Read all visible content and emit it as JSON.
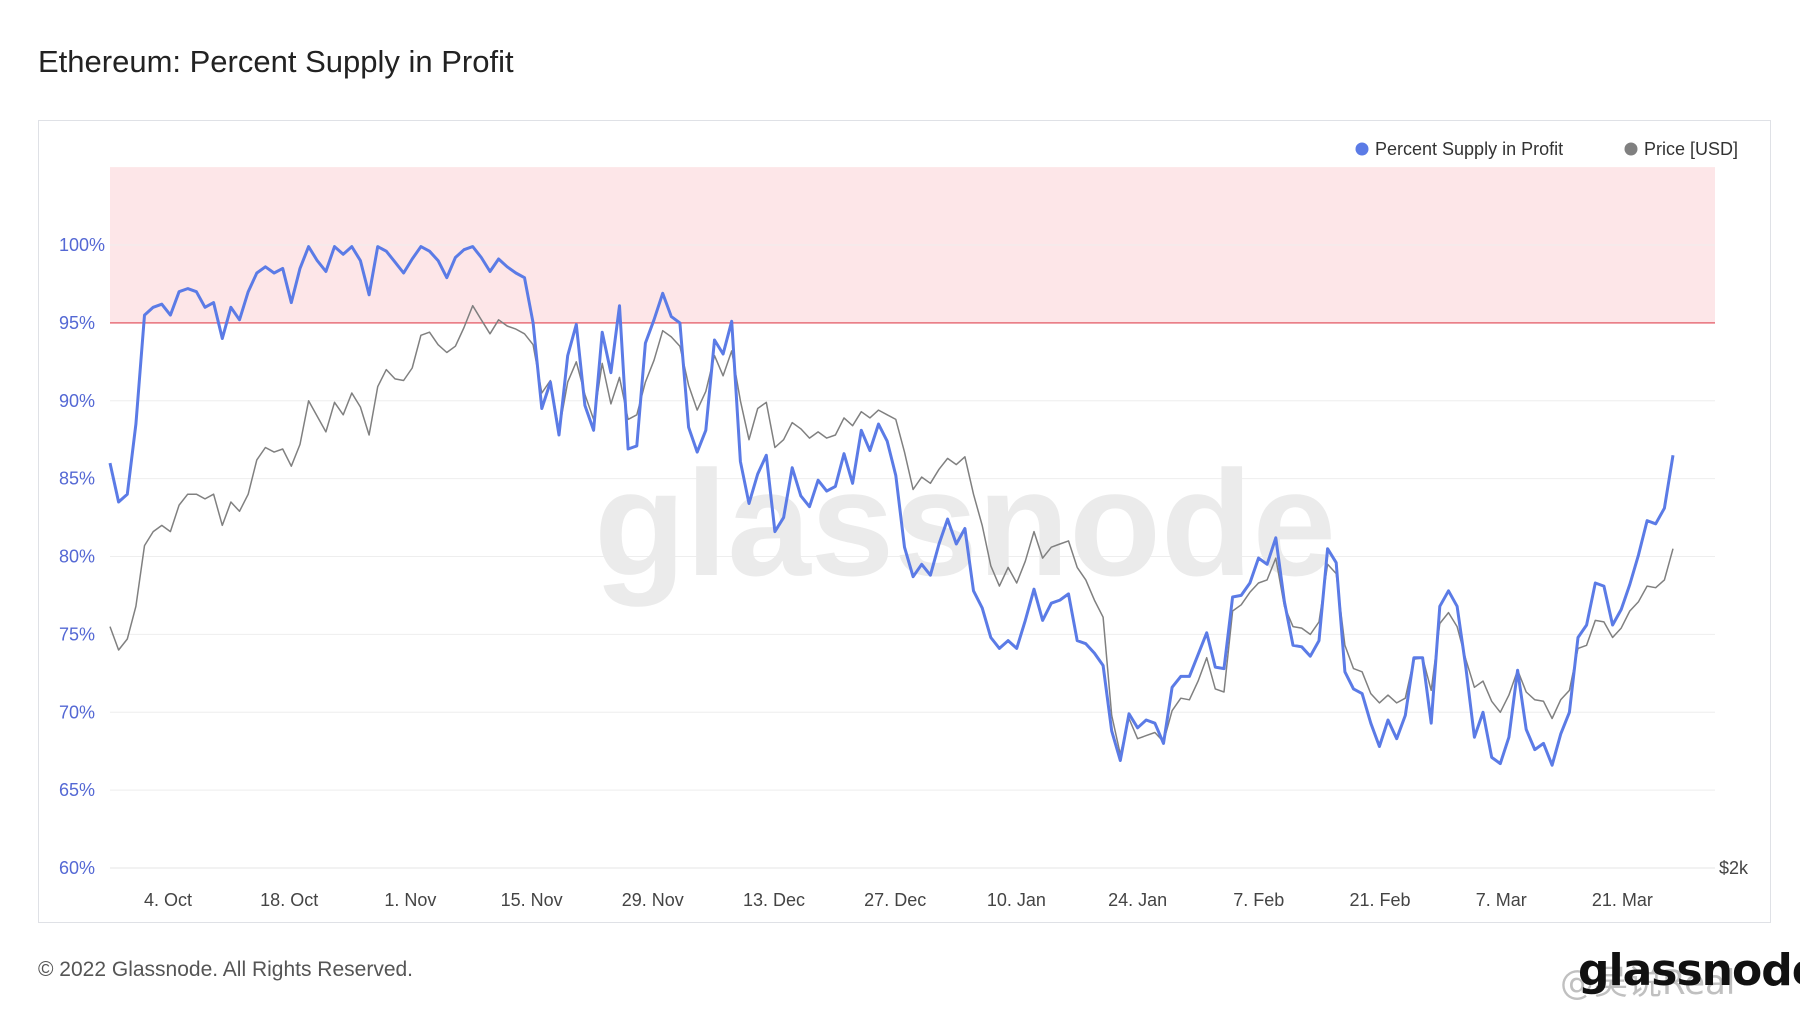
{
  "title": "Ethereum: Percent Supply in Profit",
  "footer": "© 2022 Glassnode. All Rights Reserved.",
  "brand": "glassnode",
  "watermark": "glassnode",
  "weibo_watermark": "@吴说Real",
  "colors": {
    "series1": "#5b7be6",
    "series2": "#808080",
    "band": "#fde6e8",
    "threshold": "#e8707a",
    "axis": "#5468d4"
  },
  "chart_data": {
    "type": "line",
    "legend": [
      "Percent Supply in Profit",
      "Price [USD]"
    ],
    "legend_position": "top-right",
    "y_ticks": [
      "60%",
      "65%",
      "70%",
      "75%",
      "80%",
      "85%",
      "90%",
      "95%",
      "100%"
    ],
    "ylim": [
      60,
      105
    ],
    "right_axis_label": "$2k",
    "x_ticks": [
      "4. Oct",
      "18. Oct",
      "1. Nov",
      "15. Nov",
      "29. Nov",
      "13. Dec",
      "27. Dec",
      "10. Jan",
      "24. Jan",
      "7. Feb",
      "21. Feb",
      "7. Mar",
      "21. Mar"
    ],
    "threshold": 95,
    "highlight_band": [
      95,
      105
    ],
    "grid": true,
    "series": [
      {
        "name": "Percent Supply in Profit",
        "color": "#5b7be6",
        "values": [
          86,
          83.5,
          84,
          88.5,
          95.5,
          96,
          96.2,
          95.5,
          97,
          97.2,
          97,
          96,
          96.3,
          94,
          96,
          95.2,
          97,
          98.2,
          98.6,
          98.2,
          98.5,
          96.3,
          98.5,
          99.9,
          99,
          98.3,
          99.9,
          99.4,
          99.9,
          99,
          96.8,
          99.9,
          99.6,
          98.9,
          98.2,
          99.1,
          99.9,
          99.6,
          99,
          97.9,
          99.2,
          99.7,
          99.9,
          99.2,
          98.3,
          99.1,
          98.6,
          98.2,
          97.9,
          95,
          89.5,
          91.2,
          87.8,
          92.9,
          94.9,
          89.7,
          88.1,
          94.4,
          91.8,
          96.1,
          86.9,
          87.1,
          93.7,
          95.2,
          96.9,
          95.4,
          95,
          88.3,
          86.7,
          88.1,
          93.9,
          93,
          95.1,
          86.1,
          83.4,
          85.3,
          86.5,
          81.6,
          82.5,
          85.7,
          83.9,
          83.2,
          84.9,
          84.2,
          84.5,
          86.6,
          84.7,
          88.1,
          86.8,
          88.5,
          87.4,
          85.2,
          80.6,
          78.7,
          79.5,
          78.8,
          80.8,
          82.4,
          80.8,
          81.8,
          77.8,
          76.7,
          74.8,
          74.1,
          74.6,
          74.1,
          75.9,
          77.9,
          75.9,
          77,
          77.2,
          77.6,
          74.6,
          74.4,
          73.8,
          73,
          68.8,
          66.9,
          69.9,
          69,
          69.5,
          69.3,
          68,
          71.6,
          72.3,
          72.3,
          73.7,
          75.1,
          72.9,
          72.8,
          77.4,
          77.5,
          78.3,
          79.9,
          79.5,
          81.2,
          77.1,
          74.3,
          74.2,
          73.6,
          74.6,
          80.5,
          79.6,
          72.6,
          71.5,
          71.2,
          69.3,
          67.8,
          69.5,
          68.3,
          69.8,
          73.5,
          73.5,
          69.3,
          76.8,
          77.8,
          76.8,
          72.9,
          68.4,
          70,
          67.1,
          66.7,
          68.4,
          72.7,
          68.9,
          67.6,
          68,
          66.6,
          68.6,
          70,
          74.8,
          75.6,
          78.3,
          78.1,
          75.6,
          76.6,
          78.2,
          80.1,
          82.3,
          82.1,
          83.1,
          86.5
        ]
      },
      {
        "name": "Price [USD]",
        "color": "#808080",
        "values": [
          75.5,
          74,
          74.7,
          76.8,
          80.7,
          81.6,
          82,
          81.6,
          83.3,
          84,
          84,
          83.7,
          84,
          82,
          83.5,
          82.9,
          84,
          86.2,
          87,
          86.7,
          86.9,
          85.8,
          87.2,
          90,
          89,
          88,
          89.9,
          89.1,
          90.5,
          89.6,
          87.8,
          90.9,
          92,
          91.4,
          91.3,
          92.1,
          94.2,
          94.4,
          93.6,
          93.1,
          93.5,
          94.7,
          96.1,
          95.2,
          94.3,
          95.2,
          94.8,
          94.6,
          94.3,
          93.6,
          90.5,
          91.3,
          88.1,
          91.2,
          92.5,
          90.4,
          88.8,
          92.4,
          89.8,
          91.5,
          88.8,
          89.1,
          91.2,
          92.6,
          94.5,
          94.1,
          93.5,
          91,
          89.4,
          90.6,
          92.9,
          91.6,
          93.2,
          90,
          87.5,
          89.5,
          89.9,
          87,
          87.5,
          88.6,
          88.2,
          87.6,
          88,
          87.6,
          87.8,
          88.9,
          88.4,
          89.3,
          88.9,
          89.4,
          89.1,
          88.8,
          86.7,
          84.3,
          85.1,
          84.7,
          85.6,
          86.3,
          85.9,
          86.4,
          84,
          82,
          79.4,
          78.1,
          79.3,
          78.3,
          79.7,
          81.6,
          79.9,
          80.6,
          80.8,
          81,
          79.3,
          78.5,
          77.2,
          76.1,
          69.8,
          67.3,
          69.6,
          68.3,
          68.5,
          68.7,
          68.1,
          70.1,
          70.9,
          70.8,
          72,
          73.5,
          71.5,
          71.3,
          76.5,
          76.9,
          77.7,
          78.3,
          78.5,
          79.9,
          76.8,
          75.5,
          75.4,
          75,
          75.8,
          79.5,
          78.9,
          74.3,
          72.8,
          72.6,
          71.2,
          70.6,
          71.1,
          70.6,
          70.9,
          73.4,
          73.5,
          71.4,
          75.7,
          76.4,
          75.5,
          73.4,
          71.6,
          72,
          70.7,
          70,
          71.1,
          72.7,
          71.3,
          70.8,
          70.7,
          69.6,
          70.8,
          71.4,
          74.1,
          74.3,
          75.9,
          75.8,
          74.8,
          75.4,
          76.5,
          77.1,
          78.1,
          78,
          78.5,
          80.5
        ]
      }
    ]
  }
}
